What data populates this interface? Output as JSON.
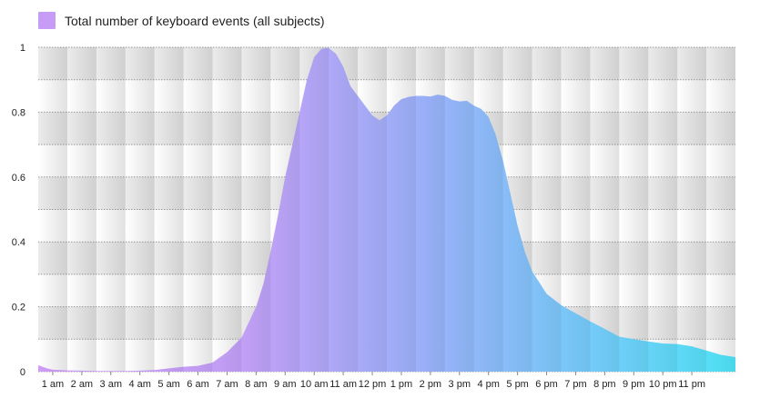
{
  "chart_data": {
    "type": "area",
    "title": "",
    "xlabel": "",
    "ylabel": "",
    "ylim": [
      0,
      1
    ],
    "xlim": [
      0.5,
      24.5
    ],
    "grid": true,
    "legend_position": "top-left",
    "series": [
      {
        "name": "Total number of keyboard events (all subjects)",
        "x": [
          0.5,
          0.8,
          1,
          1.5,
          2,
          2.5,
          3,
          3.5,
          4,
          4.5,
          5,
          5.5,
          6,
          6.5,
          7,
          7.5,
          8,
          8.25,
          8.5,
          8.75,
          9,
          9.25,
          9.5,
          9.75,
          10,
          10.25,
          10.5,
          10.75,
          11,
          11.25,
          11.5,
          11.75,
          12,
          12.25,
          12.5,
          12.75,
          13,
          13.25,
          13.5,
          13.75,
          14,
          14.25,
          14.5,
          14.75,
          15,
          15.25,
          15.5,
          15.75,
          16,
          16.25,
          16.5,
          16.75,
          17,
          17.25,
          17.5,
          17.75,
          18,
          18.5,
          19,
          19.5,
          20,
          20.5,
          21,
          21.5,
          22,
          22.5,
          23,
          23.5,
          24,
          24.5
        ],
        "values": [
          0.02,
          0.01,
          0.006,
          0.004,
          0.003,
          0.002,
          0.002,
          0.002,
          0.003,
          0.005,
          0.01,
          0.015,
          0.018,
          0.028,
          0.06,
          0.105,
          0.2,
          0.27,
          0.37,
          0.48,
          0.6,
          0.7,
          0.8,
          0.9,
          0.97,
          0.995,
          0.998,
          0.98,
          0.94,
          0.88,
          0.85,
          0.82,
          0.79,
          0.775,
          0.79,
          0.82,
          0.84,
          0.847,
          0.85,
          0.85,
          0.848,
          0.854,
          0.85,
          0.838,
          0.833,
          0.835,
          0.82,
          0.81,
          0.785,
          0.73,
          0.65,
          0.55,
          0.45,
          0.37,
          0.31,
          0.275,
          0.24,
          0.205,
          0.18,
          0.155,
          0.132,
          0.108,
          0.1,
          0.093,
          0.087,
          0.085,
          0.078,
          0.065,
          0.052,
          0.045
        ]
      }
    ],
    "categories": [
      "1 am",
      "2 am",
      "3 am",
      "4 am",
      "5 am",
      "6 am",
      "7 am",
      "8 am",
      "9 am",
      "10 am",
      "11 am",
      "12 pm",
      "1 pm",
      "2 pm",
      "3 pm",
      "4 pm",
      "5 pm",
      "6 pm",
      "7 pm",
      "8 pm",
      "9 pm",
      "10 pm",
      "11 pm"
    ],
    "y_ticks": [
      "0",
      "0.2",
      "0.4",
      "0.6",
      "0.8",
      "1"
    ],
    "colors": {
      "gradient_start": "#c79cf6",
      "gradient_mid": "#93b6fb",
      "gradient_end": "#4fe3f7"
    }
  }
}
